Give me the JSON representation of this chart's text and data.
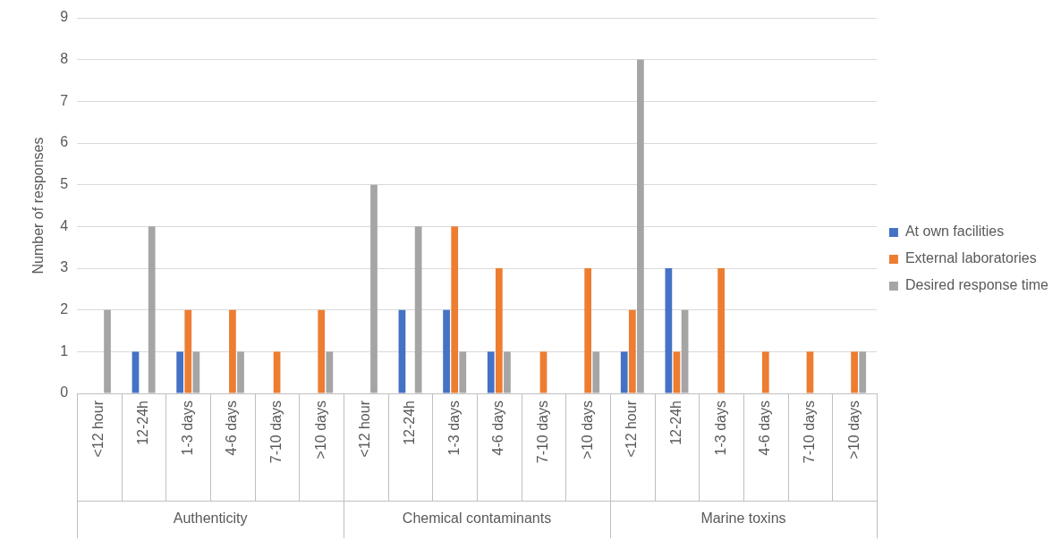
{
  "chart_data": {
    "type": "bar",
    "ylabel": "Number of responses",
    "categories": [
      "<12 hour",
      "12-24h",
      "1-3 days",
      "4-6 days",
      "7-10 days",
      ">10 days",
      "<12 hour",
      "12-24h",
      "1-3 days",
      "4-6 days",
      "7-10 days",
      ">10 days",
      "<12 hour",
      "12-24h",
      "1-3 days",
      "4-6 days",
      "7-10 days",
      ">10 days"
    ],
    "series": [
      {
        "name": "At own facilities",
        "color": "#4472c4",
        "values": [
          0,
          1,
          1,
          0,
          0,
          0,
          0,
          2,
          2,
          1,
          0,
          0,
          1,
          3,
          0,
          0,
          0,
          0
        ]
      },
      {
        "name": "External laboratories",
        "color": "#ed7d31",
        "values": [
          0,
          0,
          2,
          2,
          1,
          2,
          0,
          0,
          4,
          3,
          1,
          3,
          2,
          1,
          3,
          1,
          1,
          1
        ]
      },
      {
        "name": "Desired response time",
        "color": "#a5a5a5",
        "values": [
          2,
          4,
          1,
          1,
          0,
          1,
          5,
          4,
          1,
          1,
          0,
          1,
          8,
          2,
          0,
          0,
          0,
          1
        ]
      }
    ],
    "annotations": [
      "Authenticity",
      "Chemical contaminants",
      "Marine toxins"
    ],
    "ylim": [
      0,
      9
    ],
    "yticks": [
      0,
      1,
      2,
      3,
      4,
      5,
      6,
      7,
      8,
      9
    ],
    "grid": "y",
    "legend": "right"
  }
}
